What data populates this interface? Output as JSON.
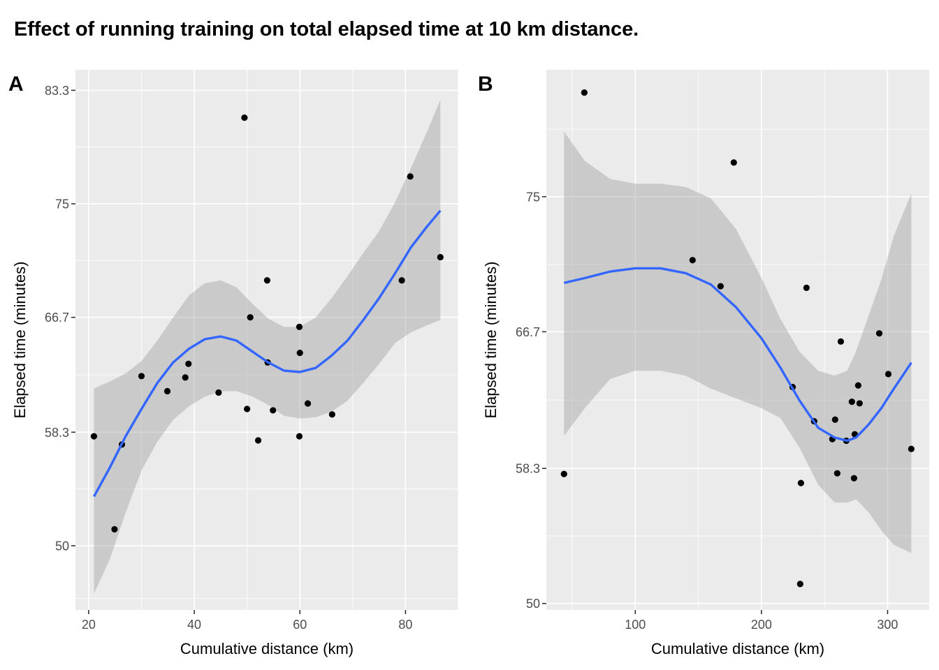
{
  "figure": {
    "title": "Effect of running training on total elapsed time at 10 km distance."
  },
  "chart_data": [
    {
      "panel": "A",
      "type": "scatter",
      "title": "",
      "xlabel": "Cumulative distance (km)",
      "ylabel": "Elapsed time (minutes)",
      "xlim": [
        17.5,
        90
      ],
      "ylim": [
        45.3,
        84.8
      ],
      "x_ticks": [
        20,
        40,
        60,
        80
      ],
      "x_tick_labels": [
        "20",
        "40",
        "60",
        "80"
      ],
      "x_minor": [
        30,
        50,
        70,
        90
      ],
      "y_ticks": [
        50,
        58.3,
        66.7,
        75,
        83.3
      ],
      "y_tick_labels": [
        "50",
        "58.3",
        "66.7",
        "75",
        "83.3"
      ],
      "y_minor": [
        46.15,
        54.15,
        62.5,
        70.85,
        79.15
      ],
      "grid": true,
      "points": [
        [
          21.0,
          58.0
        ],
        [
          24.9,
          51.2
        ],
        [
          26.3,
          57.4
        ],
        [
          30.0,
          62.4
        ],
        [
          34.9,
          61.3
        ],
        [
          38.3,
          62.3
        ],
        [
          38.9,
          63.3
        ],
        [
          44.6,
          61.2
        ],
        [
          49.5,
          81.3
        ],
        [
          50.0,
          60.0
        ],
        [
          50.6,
          66.7
        ],
        [
          52.1,
          57.7
        ],
        [
          53.8,
          69.4
        ],
        [
          53.9,
          63.4
        ],
        [
          54.9,
          59.9
        ],
        [
          59.9,
          66.0
        ],
        [
          60.0,
          64.1
        ],
        [
          59.9,
          58.0
        ],
        [
          61.5,
          60.4
        ],
        [
          66.1,
          59.6
        ],
        [
          79.3,
          69.4
        ],
        [
          80.9,
          77.0
        ],
        [
          86.6,
          71.1
        ]
      ],
      "smooth": {
        "method": "loess",
        "color": "#3366FF",
        "fit": [
          [
            21.0,
            53.6
          ],
          [
            24.0,
            55.7
          ],
          [
            27.0,
            58.0
          ],
          [
            30.0,
            60.0
          ],
          [
            33.0,
            61.9
          ],
          [
            36.0,
            63.4
          ],
          [
            39.0,
            64.4
          ],
          [
            42.0,
            65.1
          ],
          [
            45.0,
            65.3
          ],
          [
            48.0,
            65.0
          ],
          [
            51.0,
            64.2
          ],
          [
            54.0,
            63.4
          ],
          [
            57.0,
            62.8
          ],
          [
            60.0,
            62.7
          ],
          [
            63.0,
            63.0
          ],
          [
            66.0,
            63.9
          ],
          [
            69.0,
            65.0
          ],
          [
            72.0,
            66.5
          ],
          [
            75.0,
            68.1
          ],
          [
            78.0,
            69.9
          ],
          [
            81.0,
            71.8
          ],
          [
            84.0,
            73.3
          ],
          [
            86.6,
            74.5
          ]
        ],
        "band_upper": [
          [
            21.0,
            61.5
          ],
          [
            24.0,
            62.0
          ],
          [
            27.0,
            62.6
          ],
          [
            30.0,
            63.5
          ],
          [
            33.0,
            65.0
          ],
          [
            36.0,
            66.7
          ],
          [
            39.0,
            68.3
          ],
          [
            42.0,
            69.2
          ],
          [
            45.0,
            69.4
          ],
          [
            48.0,
            68.9
          ],
          [
            51.0,
            67.7
          ],
          [
            54.0,
            66.6
          ],
          [
            57.0,
            66.0
          ],
          [
            60.0,
            66.0
          ],
          [
            63.0,
            66.7
          ],
          [
            66.0,
            68.1
          ],
          [
            69.0,
            69.7
          ],
          [
            72.0,
            71.4
          ],
          [
            75.0,
            73.0
          ],
          [
            78.0,
            75.1
          ],
          [
            81.0,
            77.6
          ],
          [
            84.0,
            80.2
          ],
          [
            86.6,
            82.6
          ]
        ],
        "band_lower": [
          [
            21.0,
            46.5
          ],
          [
            24.0,
            49.0
          ],
          [
            27.0,
            52.4
          ],
          [
            30.0,
            55.5
          ],
          [
            33.0,
            57.6
          ],
          [
            36.0,
            59.2
          ],
          [
            39.0,
            60.2
          ],
          [
            42.0,
            60.9
          ],
          [
            45.0,
            61.3
          ],
          [
            48.0,
            61.3
          ],
          [
            51.0,
            60.9
          ],
          [
            54.0,
            60.3
          ],
          [
            57.0,
            59.5
          ],
          [
            60.0,
            59.3
          ],
          [
            63.0,
            59.4
          ],
          [
            66.0,
            59.8
          ],
          [
            69.0,
            60.6
          ],
          [
            72.0,
            61.9
          ],
          [
            75.0,
            63.3
          ],
          [
            78.0,
            64.8
          ],
          [
            81.0,
            65.6
          ],
          [
            84.0,
            66.1
          ],
          [
            86.6,
            66.5
          ]
        ]
      }
    },
    {
      "panel": "B",
      "type": "scatter",
      "title": "",
      "xlabel": "Cumulative distance (km)",
      "ylabel": "Elapsed time (minutes)",
      "xlim": [
        29.5,
        333
      ],
      "ylim": [
        49.6,
        82.8
      ],
      "x_ticks": [
        100,
        200,
        300
      ],
      "x_tick_labels": [
        "100",
        "200",
        "300"
      ],
      "x_minor": [
        50,
        150,
        250
      ],
      "y_ticks": [
        50,
        58.3,
        66.7,
        75
      ],
      "y_tick_labels": [
        "50",
        "58.3",
        "66.7",
        "75"
      ],
      "y_minor": [
        54.15,
        62.5,
        70.85,
        79.15
      ],
      "grid": true,
      "points": [
        [
          43.5,
          57.96
        ],
        [
          59.6,
          81.4
        ],
        [
          145.4,
          71.1
        ],
        [
          167.6,
          69.5
        ],
        [
          178.1,
          77.1
        ],
        [
          224.7,
          63.3
        ],
        [
          230.7,
          51.2
        ],
        [
          231.3,
          57.4
        ],
        [
          235.7,
          69.4
        ],
        [
          241.8,
          61.2
        ],
        [
          256.2,
          60.1
        ],
        [
          258.4,
          61.3
        ],
        [
          260.1,
          58.0
        ],
        [
          262.9,
          66.1
        ],
        [
          267.3,
          60.0
        ],
        [
          271.7,
          62.4
        ],
        [
          273.4,
          57.7
        ],
        [
          274.0,
          60.4
        ],
        [
          276.7,
          63.4
        ],
        [
          277.8,
          62.3
        ],
        [
          293.4,
          66.6
        ],
        [
          300.6,
          64.1
        ],
        [
          318.8,
          59.5
        ]
      ],
      "smooth": {
        "method": "loess",
        "color": "#3366FF",
        "fit": [
          [
            43.5,
            69.7
          ],
          [
            60.0,
            70.0
          ],
          [
            80.0,
            70.4
          ],
          [
            100.0,
            70.6
          ],
          [
            120.0,
            70.6
          ],
          [
            140.0,
            70.3
          ],
          [
            160.0,
            69.6
          ],
          [
            180.0,
            68.2
          ],
          [
            200.0,
            66.3
          ],
          [
            215.0,
            64.5
          ],
          [
            230.0,
            62.5
          ],
          [
            245.0,
            60.8
          ],
          [
            258.0,
            60.2
          ],
          [
            268.0,
            60.0
          ],
          [
            275.0,
            60.2
          ],
          [
            285.0,
            61.0
          ],
          [
            295.0,
            62.0
          ],
          [
            305.0,
            63.2
          ],
          [
            318.8,
            64.8
          ]
        ],
        "band_upper": [
          [
            43.5,
            79.0
          ],
          [
            60.0,
            77.2
          ],
          [
            80.0,
            76.1
          ],
          [
            100.0,
            75.8
          ],
          [
            120.0,
            75.8
          ],
          [
            140.0,
            75.6
          ],
          [
            160.0,
            74.9
          ],
          [
            180.0,
            73.0
          ],
          [
            200.0,
            70.0
          ],
          [
            215.0,
            67.5
          ],
          [
            230.0,
            65.5
          ],
          [
            245.0,
            64.3
          ],
          [
            258.0,
            64.0
          ],
          [
            268.0,
            64.3
          ],
          [
            275.0,
            65.5
          ],
          [
            285.0,
            67.7
          ],
          [
            295.0,
            69.9
          ],
          [
            305.0,
            72.6
          ],
          [
            318.8,
            75.2
          ]
        ],
        "band_lower": [
          [
            43.5,
            60.3
          ],
          [
            60.0,
            62.0
          ],
          [
            80.0,
            63.8
          ],
          [
            100.0,
            64.3
          ],
          [
            120.0,
            64.3
          ],
          [
            140.0,
            64.0
          ],
          [
            160.0,
            63.2
          ],
          [
            180.0,
            62.6
          ],
          [
            200.0,
            62.0
          ],
          [
            215.0,
            61.4
          ],
          [
            230.0,
            59.6
          ],
          [
            245.0,
            57.3
          ],
          [
            258.0,
            56.2
          ],
          [
            268.0,
            56.2
          ],
          [
            275.0,
            56.4
          ],
          [
            285.0,
            55.6
          ],
          [
            295.0,
            54.5
          ],
          [
            305.0,
            53.6
          ],
          [
            318.8,
            53.1
          ]
        ]
      }
    }
  ],
  "colors": {
    "panel_bg": "#EBEBEB",
    "grid": "#FFFFFF",
    "band": "#999999",
    "point": "#000000",
    "smooth": "#3366FF"
  }
}
